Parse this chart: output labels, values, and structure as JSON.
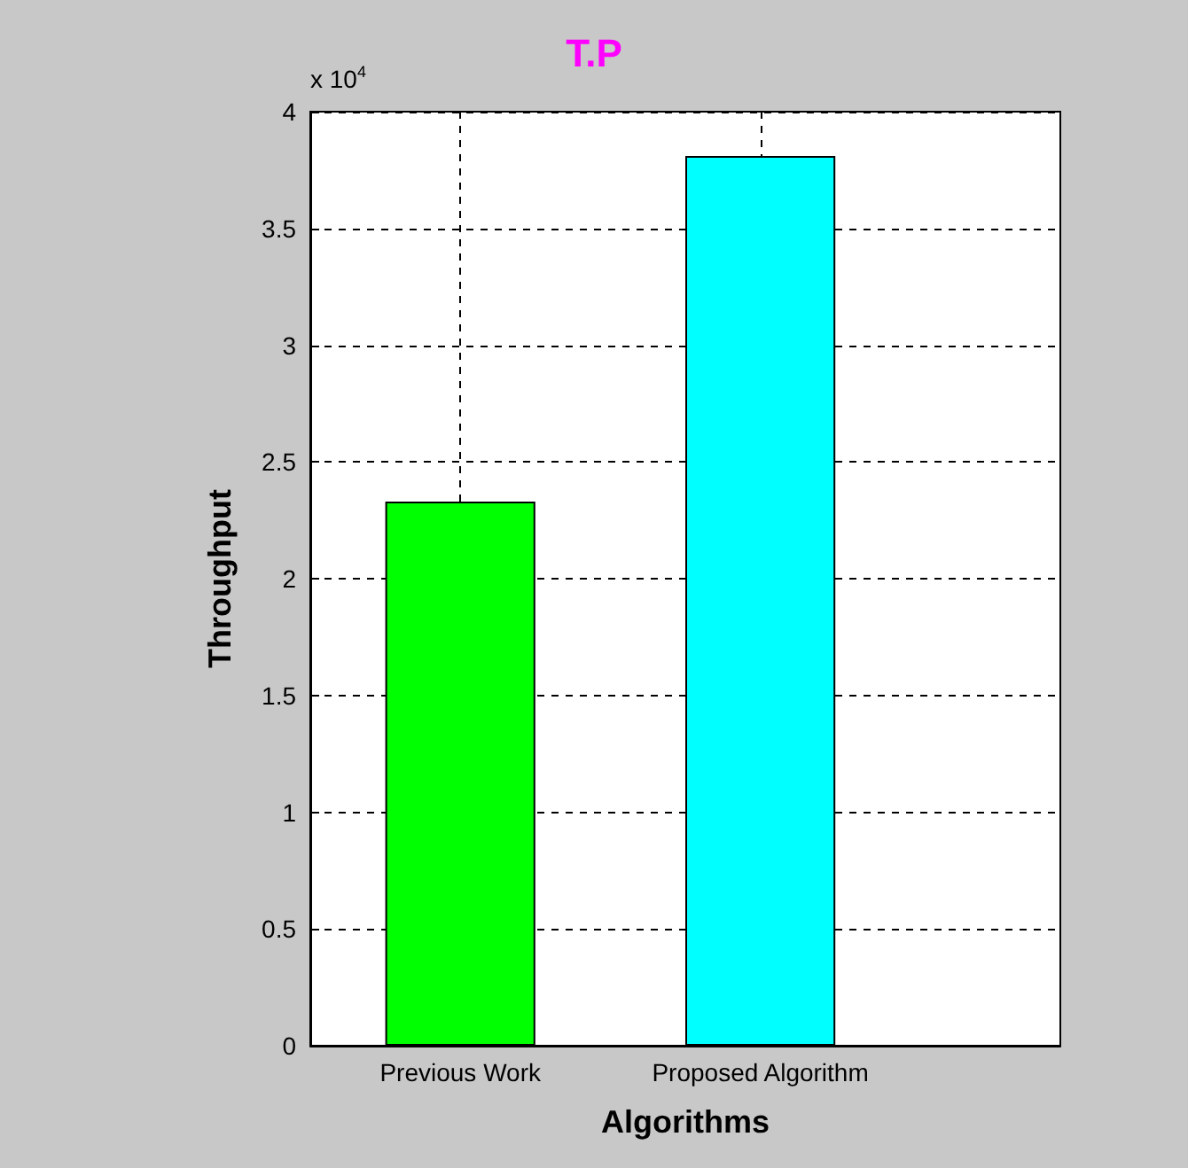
{
  "chart_data": {
    "type": "bar",
    "title": "T.P",
    "xlabel": "Algorithms",
    "ylabel": "Throughput",
    "categories": [
      "Previous Work",
      "Proposed Algorithm"
    ],
    "values": [
      2.33,
      3.81
    ],
    "colors": [
      "#00ff00",
      "#00ffff"
    ],
    "ylim": [
      0,
      4
    ],
    "yticks": [
      0,
      0.5,
      1,
      1.5,
      2,
      2.5,
      3,
      3.5,
      4
    ],
    "annotations": [
      "x 10$^{4}$"
    ],
    "grid": true
  }
}
